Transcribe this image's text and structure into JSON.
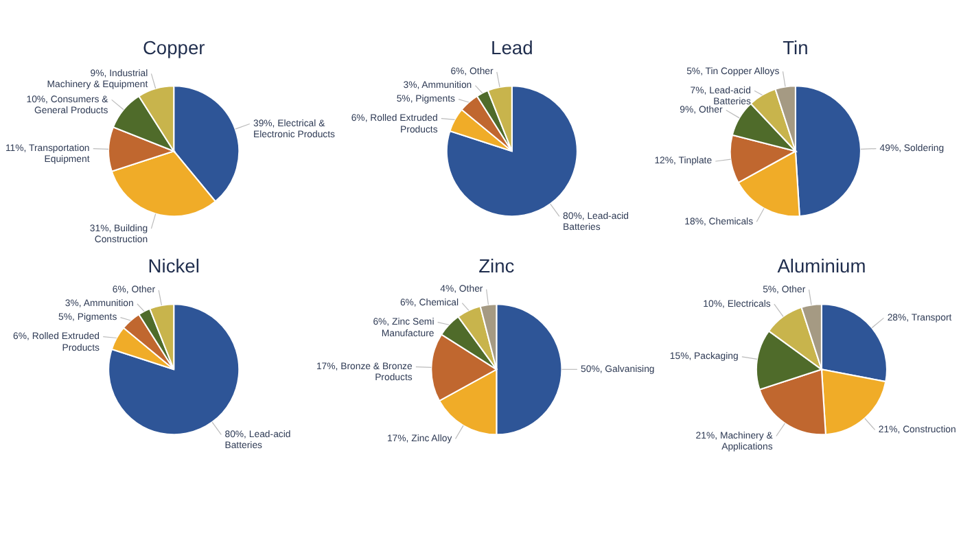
{
  "chart_data": [
    {
      "type": "pie",
      "title": "Copper",
      "categories": [
        "Electrical & Electronic Products",
        "Building Construction",
        "Transportation Equipment",
        "Consumers & General Products",
        "Industrial Machinery & Equipment"
      ],
      "values": [
        39,
        31,
        11,
        10,
        9
      ],
      "value_labels": [
        "39%",
        "31%",
        "11%",
        "10%",
        "9%"
      ],
      "colors": [
        "#2e5597",
        "#f0ac28",
        "#c0672f",
        "#4f6b2a",
        "#c8b44c"
      ]
    },
    {
      "type": "pie",
      "title": "Lead",
      "categories": [
        "Lead-acid Batteries",
        "Rolled Extruded Products",
        "Pigments",
        "Ammunition",
        "Other"
      ],
      "values": [
        80,
        6,
        5,
        3,
        6
      ],
      "value_labels": [
        "80%",
        "6%",
        "5%",
        "3%",
        "6%"
      ],
      "colors": [
        "#2e5597",
        "#f0ac28",
        "#c0672f",
        "#4f6b2a",
        "#c8b44c"
      ]
    },
    {
      "type": "pie",
      "title": "Tin",
      "categories": [
        "Soldering",
        "Chemicals",
        "Tinplate",
        "Other",
        "Lead-acid Batteries",
        "Tin Copper Alloys"
      ],
      "values": [
        49,
        18,
        12,
        9,
        7,
        5
      ],
      "value_labels": [
        "49%",
        "18%",
        "12%",
        "9%",
        "7%",
        "5%"
      ],
      "colors": [
        "#2e5597",
        "#f0ac28",
        "#c0672f",
        "#4f6b2a",
        "#c8b44c",
        "#a59a83"
      ]
    },
    {
      "type": "pie",
      "title": "Nickel",
      "categories": [
        "Lead-acid Batteries",
        "Rolled Extruded Products",
        "Pigments",
        "Ammunition",
        "Other"
      ],
      "values": [
        80,
        6,
        5,
        3,
        6
      ],
      "value_labels": [
        "80%",
        "6%",
        "5%",
        "3%",
        "6%"
      ],
      "colors": [
        "#2e5597",
        "#f0ac28",
        "#c0672f",
        "#4f6b2a",
        "#c8b44c"
      ]
    },
    {
      "type": "pie",
      "title": "Zinc",
      "categories": [
        "Galvanising",
        "Zinc Alloy",
        "Bronze & Bronze Products",
        "Zinc Semi Manufacture",
        "Chemical",
        "Other"
      ],
      "values": [
        50,
        17,
        17,
        6,
        6,
        4
      ],
      "value_labels": [
        "50%",
        "17%",
        "17%",
        "6%",
        "6%",
        "4%"
      ],
      "colors": [
        "#2e5597",
        "#f0ac28",
        "#c0672f",
        "#4f6b2a",
        "#c8b44c",
        "#a59a83"
      ]
    },
    {
      "type": "pie",
      "title": "Aluminium",
      "categories": [
        "Transport",
        "Construction",
        "Machinery & Applications",
        "Packaging",
        "Electricals",
        "Other"
      ],
      "values": [
        28,
        21,
        21,
        15,
        10,
        5
      ],
      "value_labels": [
        "28%",
        "21%",
        "21%",
        "15%",
        "10%",
        "5%"
      ],
      "colors": [
        "#2e5597",
        "#f0ac28",
        "#c0672f",
        "#4f6b2a",
        "#c8b44c",
        "#a59a83"
      ]
    }
  ]
}
